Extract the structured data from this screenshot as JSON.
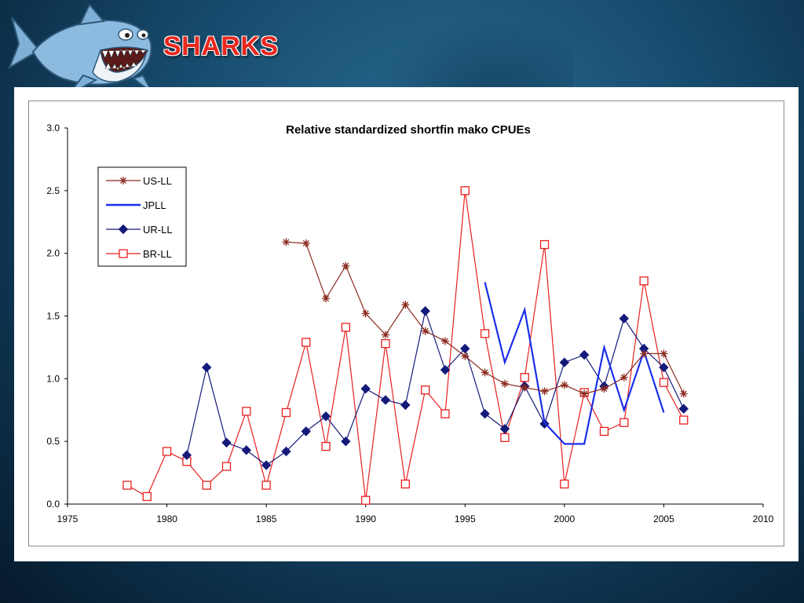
{
  "slide": {
    "title": "SHARKS",
    "title_color": "#e8281f",
    "logo_icon": "cartoon-shark-icon"
  },
  "chart_data": {
    "type": "line",
    "title": "Relative standardized shortfin mako CPUEs",
    "xlabel": "",
    "ylabel": "",
    "xlim": [
      1975,
      2010
    ],
    "ylim": [
      0,
      3.0
    ],
    "x_ticks": [
      1975,
      1980,
      1985,
      1990,
      1995,
      2000,
      2005,
      2010
    ],
    "y_ticks": [
      0.0,
      0.5,
      1.0,
      1.5,
      2.0,
      2.5,
      3.0
    ],
    "y_tick_labels": [
      "0.0",
      "0.5",
      "1.0",
      "1.5",
      "2.0",
      "2.5",
      "3.0"
    ],
    "grid": false,
    "legend_position": "top-left",
    "series": [
      {
        "name": "US-LL",
        "color": "#8b2a1e",
        "marker": "asterisk",
        "x": [
          1986,
          1987,
          1988,
          1989,
          1990,
          1991,
          1992,
          1993,
          1994,
          1995,
          1996,
          1997,
          1998,
          1999,
          2000,
          2001,
          2002,
          2003,
          2004,
          2005,
          2006
        ],
        "y": [
          2.09,
          2.08,
          1.64,
          1.9,
          1.52,
          1.35,
          1.59,
          1.38,
          1.3,
          1.18,
          1.05,
          0.96,
          0.93,
          0.9,
          0.95,
          0.88,
          0.92,
          1.01,
          1.2,
          1.2,
          0.88
        ]
      },
      {
        "name": "JPLL",
        "color": "#1a2ee8",
        "marker": "none",
        "x": [
          1996,
          1997,
          1998,
          1999,
          2000,
          2001,
          2002,
          2003,
          2004,
          2005
        ],
        "y": [
          1.77,
          1.13,
          1.55,
          0.65,
          0.48,
          0.48,
          1.25,
          0.75,
          1.22,
          0.73
        ]
      },
      {
        "name": "UR-LL",
        "color": "#141a7a",
        "marker": "diamond",
        "x": [
          1981,
          1982,
          1983,
          1984,
          1985,
          1986,
          1987,
          1988,
          1989,
          1990,
          1991,
          1992,
          1993,
          1994,
          1995,
          1996,
          1997,
          1998,
          1999,
          2000,
          2001,
          2002,
          2003,
          2004,
          2005,
          2006
        ],
        "y": [
          0.39,
          1.09,
          0.49,
          0.43,
          0.31,
          0.42,
          0.58,
          0.7,
          0.5,
          0.92,
          0.83,
          0.79,
          1.54,
          1.07,
          1.24,
          0.72,
          0.6,
          0.94,
          0.64,
          1.13,
          1.19,
          0.94,
          1.48,
          1.24,
          1.09,
          0.76
        ]
      },
      {
        "name": "BR-LL",
        "color": "#e82020",
        "marker": "open-square",
        "x": [
          1978,
          1979,
          1980,
          1981,
          1982,
          1983,
          1984,
          1985,
          1986,
          1987,
          1988,
          1989,
          1990,
          1991,
          1992,
          1993,
          1994,
          1995,
          1996,
          1997,
          1998,
          1999,
          2000,
          2001,
          2002,
          2003,
          2004,
          2005,
          2006
        ],
        "y": [
          0.15,
          0.06,
          0.42,
          0.34,
          0.15,
          0.3,
          0.74,
          0.15,
          0.73,
          1.29,
          0.46,
          1.41,
          0.03,
          1.28,
          0.16,
          0.91,
          0.72,
          2.5,
          1.36,
          0.53,
          1.01,
          2.07,
          0.16,
          0.89,
          0.58,
          0.65,
          1.78,
          0.97,
          0.67
        ]
      }
    ]
  }
}
